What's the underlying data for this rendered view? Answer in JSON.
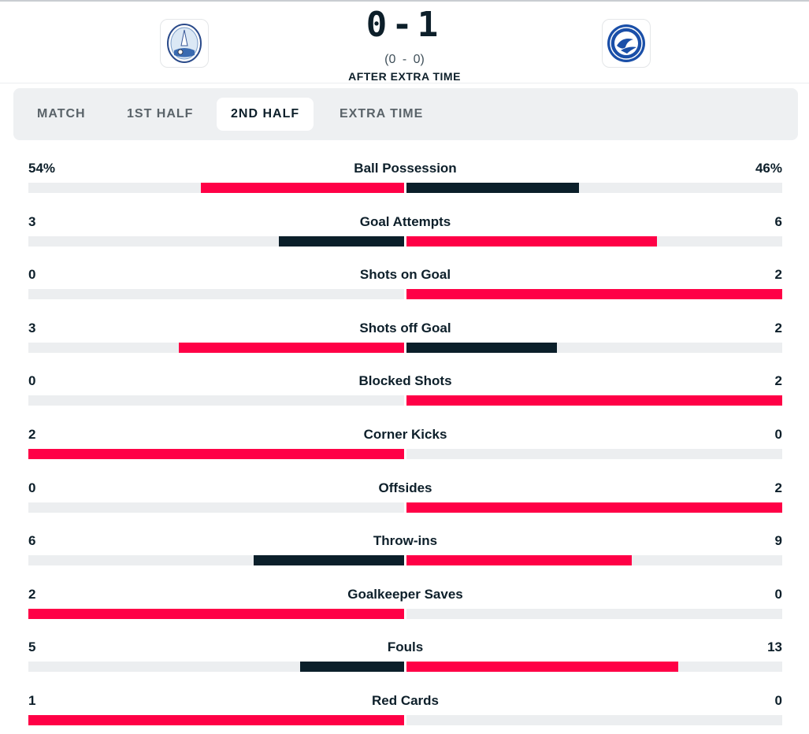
{
  "match": {
    "score": "0-1",
    "half_time_score": "(0 - 0)",
    "status": "AFTER EXTRA TIME"
  },
  "home_team": {
    "logo": "home-club-crest"
  },
  "away_team": {
    "logo": "away-club-crest"
  },
  "tabs": [
    {
      "label": "MATCH",
      "active": false
    },
    {
      "label": "1ST HALF",
      "active": false
    },
    {
      "label": "2ND HALF",
      "active": true
    },
    {
      "label": "EXTRA TIME",
      "active": false
    }
  ],
  "colors": {
    "leader": "#ff0046",
    "trailer": "#0b1f2a",
    "track": "#eceef0"
  },
  "stats": [
    {
      "label": "Ball Possession",
      "home": "54%",
      "away": "46%",
      "home_value": 54,
      "away_value": 46
    },
    {
      "label": "Goal Attempts",
      "home": "3",
      "away": "6",
      "home_value": 3,
      "away_value": 6
    },
    {
      "label": "Shots on Goal",
      "home": "0",
      "away": "2",
      "home_value": 0,
      "away_value": 2
    },
    {
      "label": "Shots off Goal",
      "home": "3",
      "away": "2",
      "home_value": 3,
      "away_value": 2
    },
    {
      "label": "Blocked Shots",
      "home": "0",
      "away": "2",
      "home_value": 0,
      "away_value": 2
    },
    {
      "label": "Corner Kicks",
      "home": "2",
      "away": "0",
      "home_value": 2,
      "away_value": 0
    },
    {
      "label": "Offsides",
      "home": "0",
      "away": "2",
      "home_value": 0,
      "away_value": 2
    },
    {
      "label": "Throw-ins",
      "home": "6",
      "away": "9",
      "home_value": 6,
      "away_value": 9
    },
    {
      "label": "Goalkeeper Saves",
      "home": "2",
      "away": "0",
      "home_value": 2,
      "away_value": 0
    },
    {
      "label": "Fouls",
      "home": "5",
      "away": "13",
      "home_value": 5,
      "away_value": 13
    },
    {
      "label": "Red Cards",
      "home": "1",
      "away": "0",
      "home_value": 1,
      "away_value": 0
    }
  ]
}
